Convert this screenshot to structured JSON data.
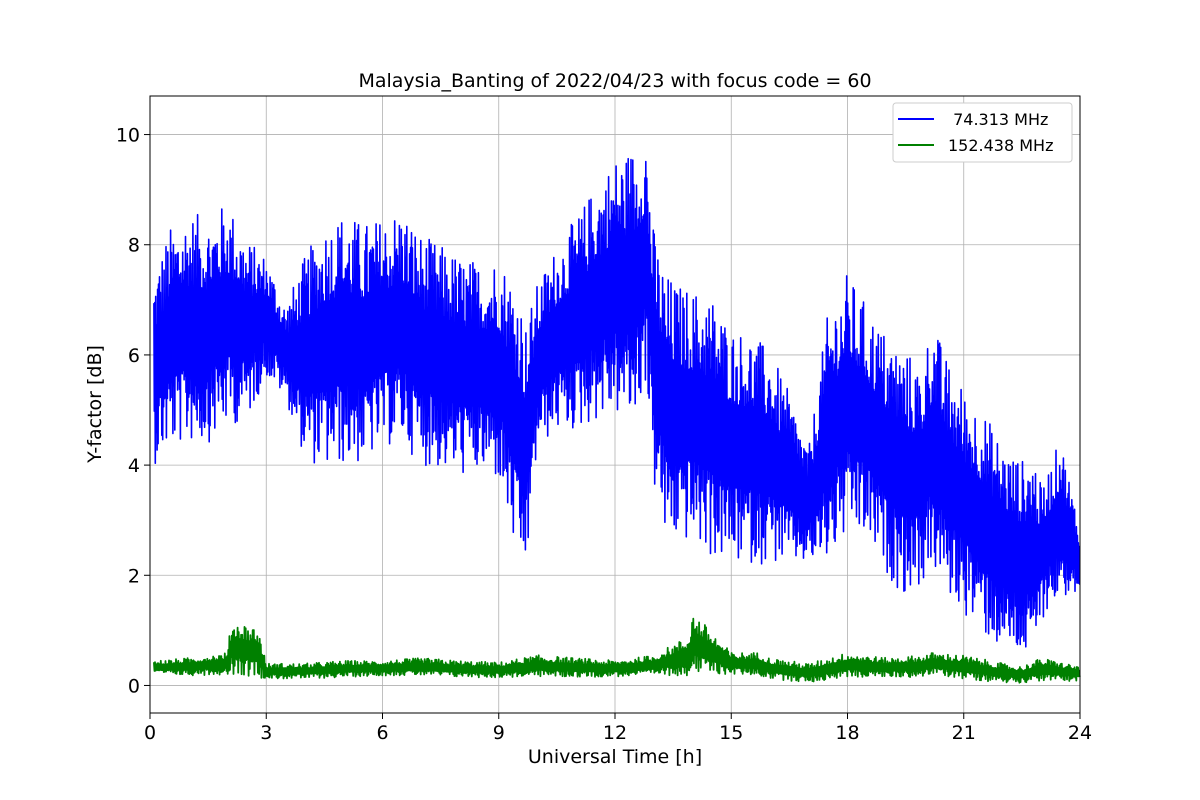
{
  "chart_data": {
    "type": "line",
    "title": "Malaysia_Banting of 2022/04/23 with focus code = 60",
    "xlabel": "Universal Time [h]",
    "ylabel": "Y-factor [dB]",
    "xlim": [
      0,
      24
    ],
    "ylim": [
      -0.5,
      10.7
    ],
    "xticks": [
      0,
      3,
      6,
      9,
      12,
      15,
      18,
      21,
      24
    ],
    "yticks": [
      0,
      2,
      4,
      6,
      8,
      10
    ],
    "grid": true,
    "legend_position": "top-right",
    "series": [
      {
        "name": " 74.313 MHz",
        "color": "#0000ff",
        "envelope": {
          "x": [
            0.1,
            0.5,
            1.0,
            1.5,
            2.0,
            2.5,
            3.0,
            3.5,
            4.0,
            4.5,
            5.0,
            5.5,
            6.0,
            6.5,
            7.0,
            7.5,
            8.0,
            8.5,
            9.0,
            9.5,
            9.7,
            10.0,
            10.5,
            11.0,
            11.5,
            12.0,
            12.5,
            12.8,
            13.0,
            13.3,
            13.6,
            14.0,
            14.5,
            15.0,
            15.5,
            16.0,
            16.5,
            17.0,
            17.5,
            18.0,
            18.5,
            19.0,
            19.5,
            19.9,
            20.2,
            20.5,
            21.0,
            21.5,
            22.0,
            22.5,
            22.8,
            23.0,
            23.5,
            24.0
          ],
          "upper": [
            7.5,
            8.3,
            8.6,
            8.5,
            8.8,
            8.1,
            7.8,
            6.9,
            7.8,
            8.4,
            8.6,
            8.4,
            8.5,
            8.7,
            8.2,
            8.0,
            7.8,
            7.7,
            7.8,
            7.3,
            6.6,
            7.3,
            8.0,
            8.5,
            9.1,
            9.6,
            9.8,
            10.1,
            8.3,
            7.5,
            7.3,
            7.2,
            7.1,
            6.5,
            6.4,
            6.1,
            5.3,
            4.3,
            6.8,
            7.5,
            6.9,
            6.4,
            6.1,
            5.8,
            6.7,
            6.0,
            5.4,
            5.0,
            4.4,
            4.1,
            4.3,
            3.6,
            4.5,
            2.9
          ],
          "lower": [
            4.0,
            4.3,
            4.4,
            4.4,
            4.7,
            4.8,
            5.6,
            5.2,
            4.1,
            3.9,
            4.0,
            4.0,
            4.3,
            4.4,
            4.0,
            3.9,
            3.8,
            3.8,
            3.7,
            2.1,
            2.0,
            4.3,
            4.6,
            4.6,
            4.8,
            4.9,
            4.7,
            5.5,
            3.6,
            2.6,
            2.6,
            2.6,
            2.3,
            2.2,
            2.2,
            2.2,
            2.2,
            2.2,
            2.2,
            2.7,
            2.6,
            2.0,
            1.6,
            1.8,
            2.1,
            1.7,
            1.3,
            0.9,
            0.6,
            0.5,
            0.4,
            1.2,
            1.6,
            1.6
          ]
        }
      },
      {
        "name": "152.438 MHz",
        "color": "#008000",
        "envelope": {
          "x": [
            0.1,
            1.0,
            2.0,
            2.1,
            2.8,
            3.0,
            4.0,
            5.0,
            6.0,
            7.0,
            8.0,
            9.0,
            10.0,
            11.0,
            12.0,
            13.0,
            13.9,
            14.0,
            15.0,
            15.7,
            16.0,
            17.0,
            18.0,
            19.0,
            19.9,
            20.2,
            21.0,
            22.0,
            22.5,
            23.0,
            24.0
          ],
          "upper": [
            0.45,
            0.5,
            0.6,
            1.2,
            1.05,
            0.4,
            0.4,
            0.45,
            0.45,
            0.5,
            0.45,
            0.42,
            0.55,
            0.5,
            0.45,
            0.55,
            0.9,
            1.35,
            0.6,
            0.6,
            0.5,
            0.4,
            0.6,
            0.5,
            0.55,
            0.6,
            0.55,
            0.4,
            0.35,
            0.5,
            0.35
          ],
          "lower": [
            0.2,
            0.18,
            0.2,
            0.2,
            0.15,
            0.12,
            0.12,
            0.15,
            0.18,
            0.18,
            0.15,
            0.14,
            0.16,
            0.15,
            0.16,
            0.18,
            0.18,
            0.2,
            0.2,
            0.18,
            0.12,
            0.05,
            0.15,
            0.15,
            0.15,
            0.2,
            0.12,
            0.05,
            0.05,
            0.08,
            0.08
          ]
        }
      }
    ]
  }
}
